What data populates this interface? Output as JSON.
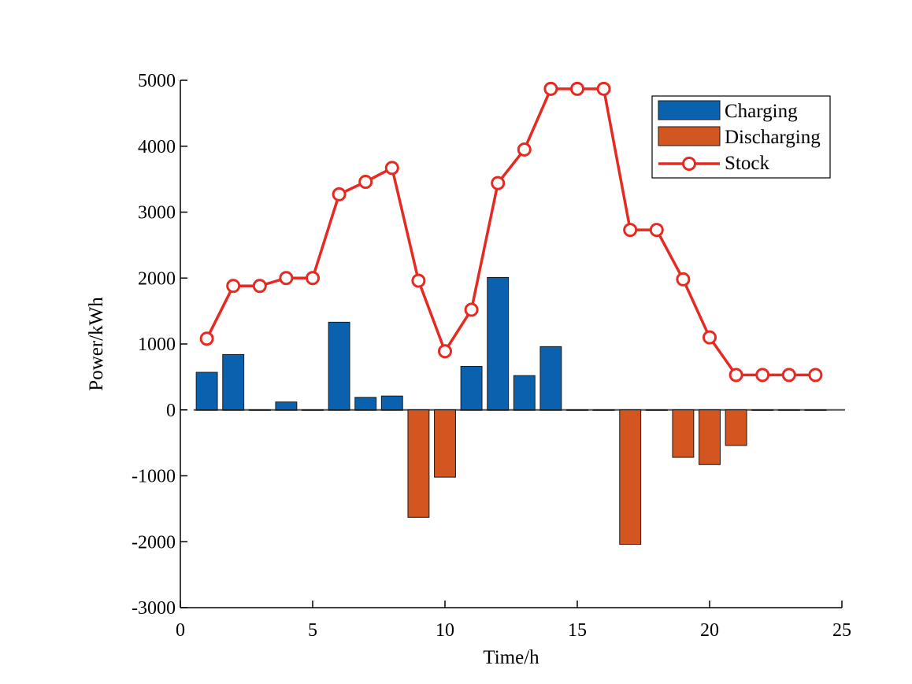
{
  "chart_data": {
    "type": "bar",
    "title": "",
    "xlabel": "Time/h",
    "ylabel": "Power/kWh",
    "xlim": [
      0,
      25
    ],
    "ylim": [
      -3000,
      5000
    ],
    "x_ticks": [
      0,
      5,
      10,
      15,
      20,
      25
    ],
    "y_ticks": [
      -3000,
      -2000,
      -1000,
      0,
      1000,
      2000,
      3000,
      4000,
      5000
    ],
    "grid": false,
    "legend_position": "top-right",
    "x": [
      1,
      2,
      3,
      4,
      5,
      6,
      7,
      8,
      9,
      10,
      11,
      12,
      13,
      14,
      15,
      16,
      17,
      18,
      19,
      20,
      21,
      22,
      23,
      24
    ],
    "series": [
      {
        "name": "Charging",
        "type": "bar",
        "color": "#0A62AF",
        "values": [
          570,
          840,
          0,
          120,
          0,
          1330,
          190,
          210,
          0,
          0,
          660,
          2010,
          520,
          960,
          0,
          0,
          0,
          0,
          0,
          0,
          0,
          0,
          0,
          0
        ]
      },
      {
        "name": "Discharging",
        "type": "bar",
        "color": "#D35520",
        "values": [
          0,
          0,
          0,
          0,
          0,
          0,
          0,
          0,
          -1630,
          -1020,
          0,
          0,
          0,
          0,
          0,
          0,
          -2040,
          0,
          -720,
          -830,
          -540,
          0,
          0,
          0
        ]
      },
      {
        "name": "Stock",
        "type": "line",
        "color": "#E52A22",
        "marker": "circle",
        "values": [
          1080,
          1880,
          1880,
          2000,
          2000,
          3270,
          3460,
          3670,
          1960,
          890,
          1520,
          3440,
          3950,
          4870,
          4870,
          4870,
          2730,
          2730,
          1980,
          1100,
          530,
          530,
          530,
          530
        ]
      }
    ]
  }
}
